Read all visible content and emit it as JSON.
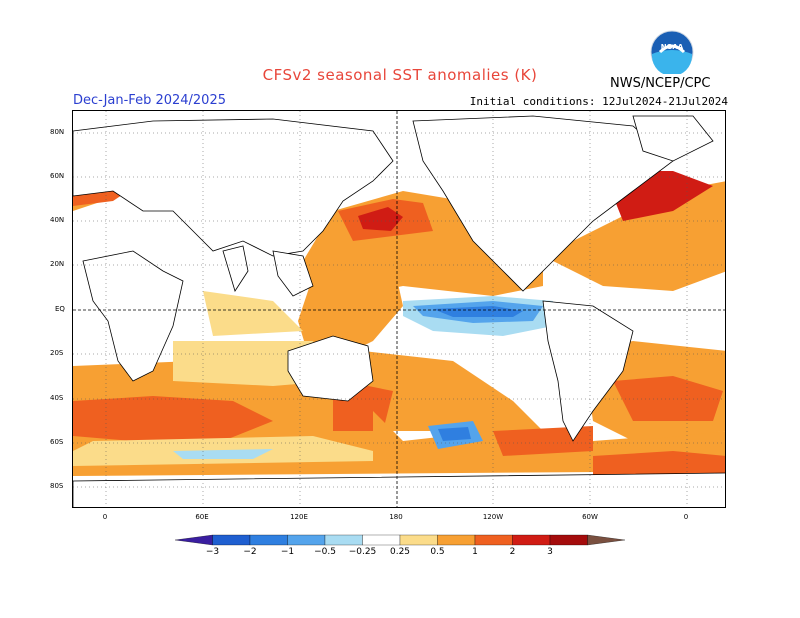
{
  "header": {
    "title": "CFSv2 seasonal SST anomalies (K)",
    "season": "Dec-Jan-Feb 2024/2025",
    "initial_conditions": "Initial conditions: 12Jul2024-21Jul2024",
    "agency": "NWS/NCEP/CPC",
    "logo_text": "NOAA"
  },
  "map": {
    "projection": "cylindrical equidistant",
    "center_longitude": "180",
    "lat_labels": [
      "80N",
      "60N",
      "40N",
      "20N",
      "EQ",
      "20S",
      "40S",
      "60S",
      "80S"
    ],
    "lon_labels": [
      "0",
      "60E",
      "120E",
      "180",
      "120W",
      "60W",
      "0"
    ],
    "reference_lines": [
      "Equator",
      "180"
    ]
  },
  "colorbar": {
    "labels": [
      "−3",
      "−2",
      "−1",
      "−0.5",
      "−0.25",
      "0.25",
      "0.5",
      "1",
      "2",
      "3"
    ],
    "colors": [
      "#3a1ea0",
      "#1f5fd0",
      "#2f7fe0",
      "#54a4ec",
      "#a9dcf2",
      "#ffffff",
      "#fbdc8a",
      "#f7a033",
      "#ef6020",
      "#d01c14",
      "#a40c0c",
      "#7a5040"
    ]
  }
}
